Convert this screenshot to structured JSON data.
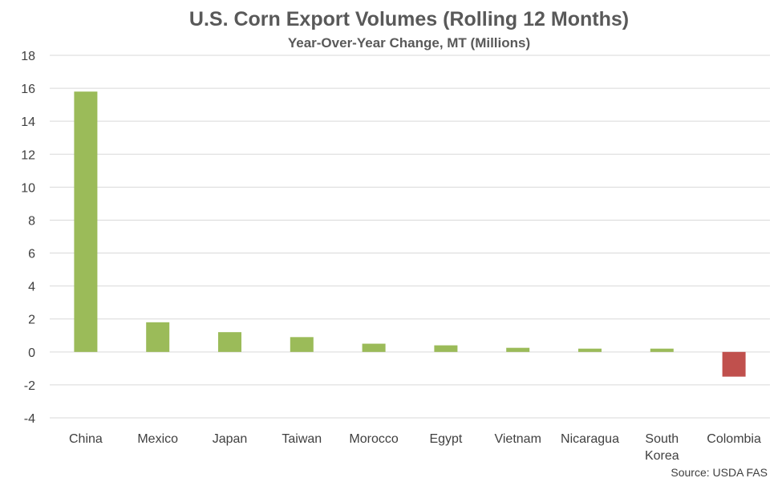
{
  "chart_data": {
    "type": "bar",
    "title": "U.S. Corn Export Volumes (Rolling 12 Months)",
    "subtitle": "Year-Over-Year Change, MT (Millions)",
    "categories": [
      "China",
      "Mexico",
      "Japan",
      "Taiwan",
      "Morocco",
      "Egypt",
      "Vietnam",
      "Nicaragua",
      "South Korea",
      "Colombia"
    ],
    "category_lines": [
      [
        "China"
      ],
      [
        "Mexico"
      ],
      [
        "Japan"
      ],
      [
        "Taiwan"
      ],
      [
        "Morocco"
      ],
      [
        "Egypt"
      ],
      [
        "Vietnam"
      ],
      [
        "Nicaragua"
      ],
      [
        "South",
        "Korea"
      ],
      [
        "Colombia"
      ]
    ],
    "values": [
      15.8,
      1.8,
      1.2,
      0.9,
      0.5,
      0.4,
      0.25,
      0.2,
      0.2,
      -1.5
    ],
    "ylim": [
      -4,
      18
    ],
    "yticks": [
      -4,
      -2,
      0,
      2,
      4,
      6,
      8,
      10,
      12,
      14,
      16,
      18
    ],
    "grid": true,
    "colors": {
      "positive": "#9BBB59",
      "negative": "#C0504D",
      "grid": "#D9D9D9",
      "text": "#404040",
      "title": "#595959"
    }
  },
  "footer": {
    "source": "Source: USDA FAS"
  }
}
